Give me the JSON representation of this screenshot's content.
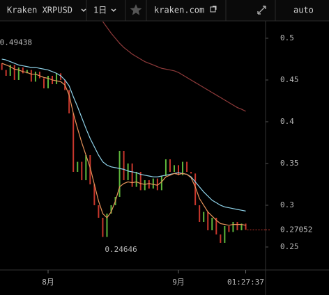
{
  "toolbar": {
    "symbol": "Kraken XRPUSD",
    "interval": "1日",
    "site": "kraken.com",
    "scale": "auto"
  },
  "chart_data": {
    "type": "candlestick",
    "x": [
      -11,
      -10,
      -9,
      -8,
      -7,
      -6,
      -5,
      -4,
      -3,
      -2,
      -1,
      0,
      1,
      2,
      3,
      4,
      5,
      6,
      7,
      8,
      9,
      10,
      11,
      12,
      13,
      14,
      15,
      16,
      17,
      18,
      19,
      20,
      21,
      22,
      23,
      24,
      25,
      26,
      27,
      28,
      29,
      30,
      31,
      32,
      33,
      34,
      35,
      36,
      37,
      38,
      39,
      40,
      41,
      42,
      43,
      44,
      45,
      46,
      47
    ],
    "open": [
      0.47,
      0.462,
      0.455,
      0.468,
      0.45,
      0.465,
      0.458,
      0.462,
      0.448,
      0.46,
      0.452,
      0.44,
      0.455,
      0.445,
      0.458,
      0.45,
      0.438,
      0.41,
      0.34,
      0.352,
      0.33,
      0.36,
      0.325,
      0.3,
      0.285,
      0.262,
      0.29,
      0.3,
      0.31,
      0.365,
      0.33,
      0.35,
      0.322,
      0.34,
      0.318,
      0.33,
      0.32,
      0.332,
      0.318,
      0.335,
      0.355,
      0.34,
      0.348,
      0.336,
      0.352,
      0.34,
      0.338,
      0.3,
      0.28,
      0.292,
      0.27,
      0.285,
      0.265,
      0.255,
      0.275,
      0.268,
      0.28,
      0.27,
      0.278
    ],
    "close": [
      0.462,
      0.455,
      0.468,
      0.45,
      0.465,
      0.458,
      0.462,
      0.448,
      0.46,
      0.452,
      0.44,
      0.455,
      0.445,
      0.458,
      0.45,
      0.438,
      0.41,
      0.34,
      0.352,
      0.33,
      0.36,
      0.325,
      0.3,
      0.285,
      0.262,
      0.29,
      0.3,
      0.31,
      0.365,
      0.33,
      0.35,
      0.322,
      0.34,
      0.318,
      0.33,
      0.32,
      0.332,
      0.318,
      0.335,
      0.355,
      0.34,
      0.348,
      0.336,
      0.352,
      0.34,
      0.338,
      0.3,
      0.28,
      0.292,
      0.27,
      0.285,
      0.265,
      0.255,
      0.275,
      0.268,
      0.28,
      0.27,
      0.278,
      0.27052
    ],
    "up_color": "#5fb83c",
    "down_color": "#c9372c",
    "series": [
      {
        "color": "#8fd3ea",
        "values": [
          0.475,
          0.474,
          0.472,
          0.47,
          0.468,
          0.467,
          0.466,
          0.465,
          0.465,
          0.464,
          0.463,
          0.462,
          0.46,
          0.458,
          0.455,
          0.45,
          0.443,
          0.43,
          0.418,
          0.405,
          0.392,
          0.38,
          0.37,
          0.36,
          0.352,
          0.348,
          0.346,
          0.345,
          0.344,
          0.343,
          0.341,
          0.34,
          0.339,
          0.337,
          0.336,
          0.335,
          0.334,
          0.334,
          0.335,
          0.336,
          0.337,
          0.338,
          0.339,
          0.338,
          0.337,
          0.334,
          0.328,
          0.322,
          0.316,
          0.311,
          0.306,
          0.303,
          0.3,
          0.298,
          0.297,
          0.296,
          0.295,
          0.294,
          0.293
        ]
      },
      {
        "color": "#e8935a",
        "values": [
          0.47,
          0.468,
          0.466,
          0.463,
          0.462,
          0.46,
          0.459,
          0.457,
          0.457,
          0.455,
          0.453,
          0.452,
          0.45,
          0.449,
          0.448,
          0.444,
          0.432,
          0.41,
          0.392,
          0.375,
          0.36,
          0.345,
          0.325,
          0.305,
          0.29,
          0.285,
          0.292,
          0.305,
          0.322,
          0.326,
          0.328,
          0.327,
          0.328,
          0.326,
          0.325,
          0.326,
          0.325,
          0.324,
          0.328,
          0.334,
          0.336,
          0.338,
          0.337,
          0.338,
          0.337,
          0.333,
          0.322,
          0.308,
          0.3,
          0.292,
          0.287,
          0.282,
          0.278,
          0.277,
          0.276,
          0.277,
          0.277,
          0.277,
          0.276
        ]
      },
      {
        "color": "#8e3a3a",
        "values": [
          null,
          null,
          null,
          null,
          null,
          null,
          null,
          null,
          null,
          null,
          null,
          null,
          null,
          null,
          null,
          null,
          null,
          null,
          null,
          null,
          null,
          null,
          null,
          null,
          0.52,
          0.513,
          0.506,
          0.5,
          0.494,
          0.489,
          0.485,
          0.481,
          0.478,
          0.475,
          0.472,
          0.47,
          0.468,
          0.466,
          0.464,
          0.463,
          0.462,
          0.461,
          0.459,
          0.456,
          0.453,
          0.45,
          0.447,
          0.444,
          0.441,
          0.438,
          0.435,
          0.432,
          0.429,
          0.426,
          0.423,
          0.42,
          0.417,
          0.415,
          0.4125
        ]
      }
    ],
    "xlim": [
      -11.44,
      51.72
    ],
    "xticks": [
      {
        "value": 0,
        "label": "8月"
      },
      {
        "value": 31,
        "label": "9月"
      },
      {
        "value": 47,
        "label": "01:27:37"
      }
    ],
    "ylim": [
      0.2225,
      0.5208
    ],
    "yticks": [
      0.25,
      0.3,
      0.35,
      0.4,
      0.45,
      0.5
    ],
    "annotations": [
      {
        "x": -12,
        "value": 0.49438
      },
      {
        "x": 13,
        "value": 0.24646
      }
    ],
    "last_price": 0.27052,
    "last_x": 47
  }
}
